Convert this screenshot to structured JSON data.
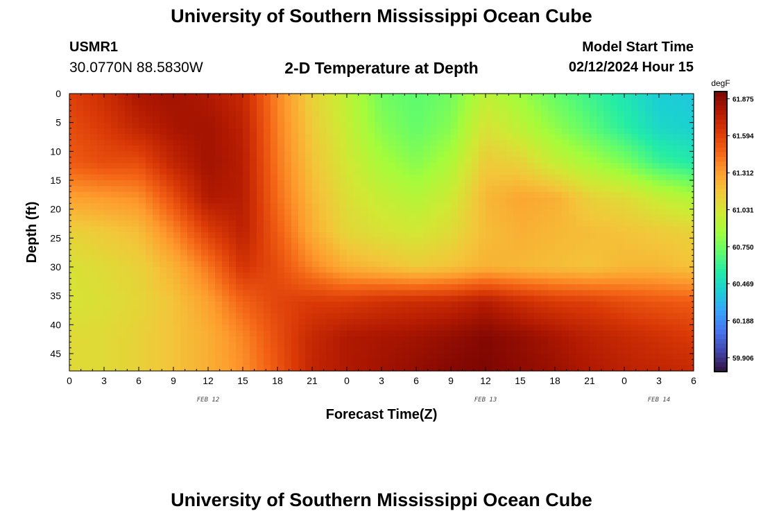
{
  "header": {
    "title": "University of Southern Mississippi Ocean Cube",
    "station_id": "USMR1",
    "station_coords": "30.0770N  88.5830W",
    "plot_title": "2-D Temperature at Depth",
    "model_label": "Model Start Time",
    "model_time": "02/12/2024 Hour 15"
  },
  "footer": {
    "title": "University of Southern Mississippi Ocean Cube"
  },
  "colors": {
    "colormap": [
      "#30123b",
      "#4145ab",
      "#4675ed",
      "#39a2fc",
      "#1bcfd4",
      "#24eca6",
      "#61fc6c",
      "#a4fc3b",
      "#d1e834",
      "#f3c63a",
      "#fe9b2d",
      "#f36315",
      "#d93806",
      "#b11901",
      "#7a0402"
    ]
  },
  "chart_data": {
    "type": "heatmap",
    "xlabel": "Forecast Time(Z)",
    "ylabel": "Depth (ft)",
    "colorbar_label": "degF",
    "colorbar_ticks": [
      "61.875",
      "61.594",
      "61.312",
      "61.031",
      "60.750",
      "60.469",
      "60.188",
      "59.906"
    ],
    "colorbar_range": [
      59.8,
      61.93
    ],
    "x_range": [
      0,
      54
    ],
    "y_range": [
      0,
      48
    ],
    "x_ticks": [
      0,
      3,
      6,
      9,
      12,
      15,
      18,
      21,
      24,
      27,
      30,
      33,
      36,
      39,
      42,
      45,
      48,
      51,
      54
    ],
    "x_tick_labels": [
      "0",
      "3",
      "6",
      "9",
      "12",
      "15",
      "18",
      "21",
      "0",
      "3",
      "6",
      "9",
      "12",
      "15",
      "18",
      "21",
      "0",
      "3",
      "6"
    ],
    "y_ticks": [
      0,
      5,
      10,
      15,
      20,
      25,
      30,
      35,
      40,
      45
    ],
    "y_tick_labels": [
      "0",
      "5",
      "10",
      "15",
      "20",
      "25",
      "30",
      "35",
      "40",
      "45"
    ],
    "date_labels": [
      {
        "x": 12,
        "text": "FEB 12"
      },
      {
        "x": 36,
        "text": "FEB 13"
      },
      {
        "x": 51,
        "text": "FEB 14"
      }
    ],
    "x_hours": [
      0,
      3,
      6,
      9,
      12,
      15,
      18,
      21,
      24,
      27,
      30,
      33,
      36,
      39,
      42,
      45,
      48,
      51,
      54
    ],
    "y_depths": [
      0,
      6,
      12,
      18,
      24,
      30,
      36,
      42,
      48
    ],
    "temperature": [
      [
        61.6,
        61.68,
        61.8,
        61.82,
        61.78,
        61.7,
        61.38,
        61.12,
        60.95,
        60.75,
        60.7,
        60.75,
        60.95,
        60.85,
        60.72,
        60.62,
        60.52,
        60.4,
        60.38
      ],
      [
        61.55,
        61.62,
        61.72,
        61.8,
        61.82,
        61.74,
        61.4,
        61.15,
        60.98,
        60.8,
        60.72,
        60.8,
        61.05,
        60.95,
        60.82,
        60.7,
        60.58,
        60.45,
        60.42
      ],
      [
        61.5,
        61.55,
        61.55,
        61.72,
        61.82,
        61.76,
        61.42,
        61.18,
        61.02,
        60.88,
        60.8,
        60.9,
        61.15,
        61.12,
        60.98,
        60.88,
        60.78,
        60.62,
        60.55
      ],
      [
        61.3,
        61.32,
        61.35,
        61.55,
        61.78,
        61.76,
        61.45,
        61.22,
        61.06,
        60.98,
        60.92,
        61.0,
        61.22,
        61.28,
        61.25,
        61.12,
        61.08,
        60.98,
        60.9
      ],
      [
        61.12,
        61.15,
        61.2,
        61.38,
        61.6,
        61.74,
        61.5,
        61.26,
        61.1,
        61.05,
        61.02,
        61.08,
        61.2,
        61.25,
        61.22,
        61.2,
        61.18,
        61.15,
        61.12
      ],
      [
        61.05,
        61.08,
        61.12,
        61.24,
        61.42,
        61.65,
        61.55,
        61.38,
        61.25,
        61.2,
        61.15,
        61.18,
        61.24,
        61.22,
        61.2,
        61.18,
        61.22,
        61.22,
        61.18
      ],
      [
        61.04,
        61.06,
        61.1,
        61.18,
        61.3,
        61.48,
        61.58,
        61.62,
        61.62,
        61.66,
        61.68,
        61.7,
        61.76,
        61.68,
        61.62,
        61.6,
        61.55,
        61.52,
        61.5
      ],
      [
        61.08,
        61.08,
        61.12,
        61.18,
        61.25,
        61.38,
        61.55,
        61.7,
        61.78,
        61.8,
        61.82,
        61.86,
        61.9,
        61.86,
        61.8,
        61.74,
        61.7,
        61.66,
        61.62
      ],
      [
        61.08,
        61.08,
        61.12,
        61.18,
        61.25,
        61.35,
        61.52,
        61.72,
        61.78,
        61.82,
        61.86,
        61.9,
        61.92,
        61.88,
        61.84,
        61.78,
        61.74,
        61.72,
        61.7
      ]
    ]
  }
}
